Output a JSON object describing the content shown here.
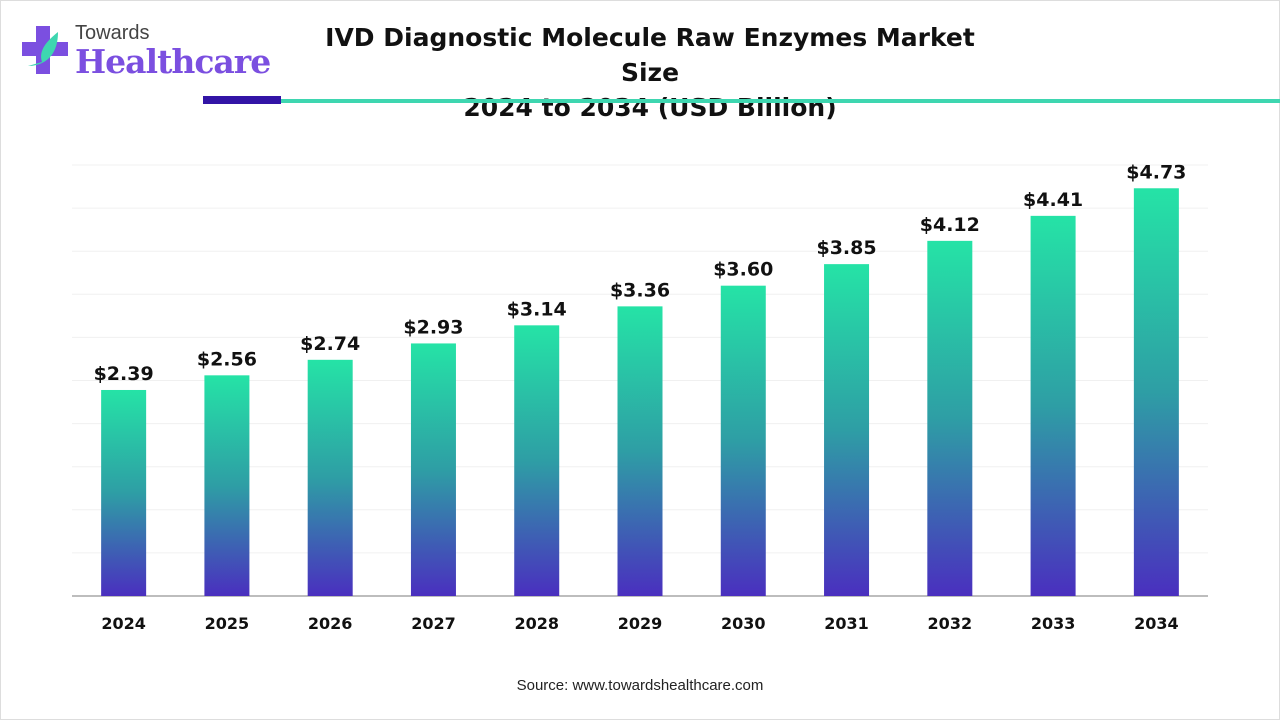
{
  "logo": {
    "top": "Towards",
    "main": "Healthcare"
  },
  "title_line1": "IVD Diagnostic Molecule Raw Enzymes Market Size",
  "title_line2": "2024 to 2034 (USD Billion)",
  "source": "Source: www.towardshealthcare.com",
  "colors": {
    "bar_top": "#25e3a6",
    "bar_mid": "#2e9ea5",
    "bar_bottom": "#4a2fbf",
    "accent_dark": "#3214a6",
    "accent_teal": "#3ed6b0"
  },
  "chart_data": {
    "type": "bar",
    "categories": [
      "2024",
      "2025",
      "2026",
      "2027",
      "2028",
      "2029",
      "2030",
      "2031",
      "2032",
      "2033",
      "2034"
    ],
    "values": [
      2.39,
      2.56,
      2.74,
      2.93,
      3.14,
      3.36,
      3.6,
      3.85,
      4.12,
      4.41,
      4.73
    ],
    "data_labels": [
      "$2.39",
      "$2.56",
      "$2.74",
      "$2.93",
      "$3.14",
      "$3.36",
      "$3.60",
      "$3.85",
      "$4.12",
      "$4.41",
      "$4.73"
    ],
    "title": "IVD Diagnostic Molecule Raw Enzymes Market Size 2024 to 2034 (USD Billion)",
    "xlabel": "",
    "ylabel": "",
    "ylim": [
      0,
      5
    ],
    "grid": true,
    "grid_step": 0.5
  }
}
